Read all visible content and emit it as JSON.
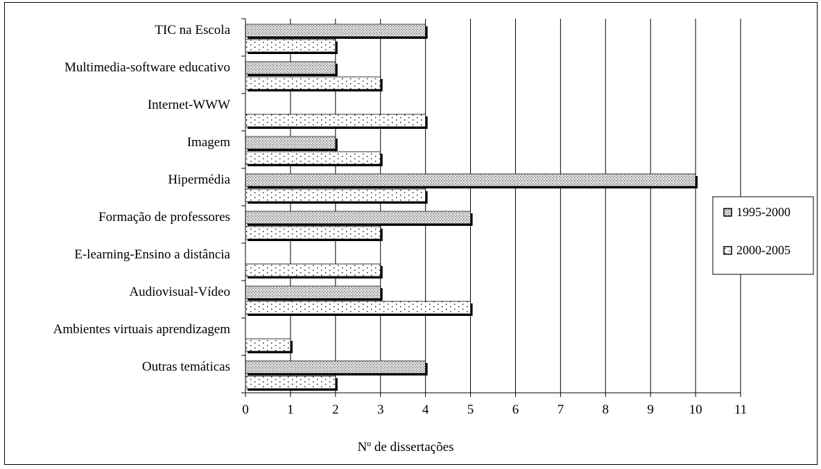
{
  "chart_data": {
    "type": "bar",
    "orientation": "horizontal",
    "categories": [
      "TIC na Escola",
      "Multimedia-software educativo",
      "Internet-WWW",
      "Imagem",
      "Hipermédia",
      "Formação de professores",
      "E-learning-Ensino a distância",
      "Audiovisual-Vídeo",
      "Ambientes virtuais aprendizagem",
      "Outras temáticas"
    ],
    "series": [
      {
        "name": "1995-2000",
        "values": [
          4,
          2,
          0,
          2,
          10,
          5,
          0,
          3,
          0,
          4
        ],
        "pattern": "dense-dots"
      },
      {
        "name": "2000-2005",
        "values": [
          2,
          3,
          4,
          3,
          4,
          3,
          3,
          5,
          1,
          2
        ],
        "pattern": "sparse-dots"
      }
    ],
    "xlabel": "Nº de dissertações",
    "ylabel": "",
    "title": "",
    "xlim": [
      0,
      11
    ],
    "xticks": [
      "0",
      "1",
      "2",
      "3",
      "4",
      "5",
      "6",
      "7",
      "8",
      "9",
      "10",
      "11"
    ],
    "grid": "vertical",
    "legend_position": "right"
  }
}
